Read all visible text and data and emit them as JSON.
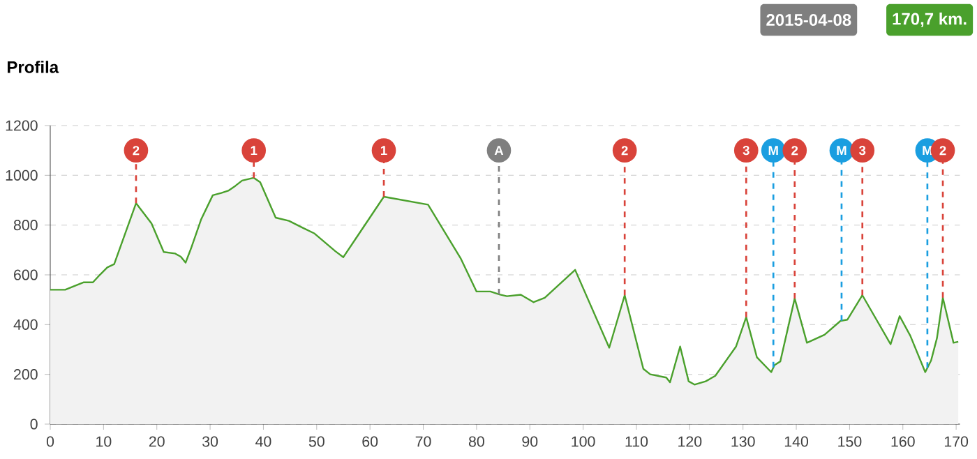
{
  "chart_data": {
    "type": "area",
    "title": "Profila",
    "annotations": [
      "2015-04-08",
      "170,7 km.",
      {
        "text": "2",
        "x": 16.1,
        "y": 1100
      },
      {
        "text": "1",
        "x": 38.2,
        "y": 1100
      },
      {
        "text": "1",
        "x": 62.6,
        "y": 1100
      },
      {
        "text": "A",
        "x": 84.2,
        "y": 1100
      },
      {
        "text": "2",
        "x": 107.8,
        "y": 1100
      },
      {
        "text": "3",
        "x": 130.6,
        "y": 1100
      },
      {
        "text": "M",
        "x": 135.7,
        "y": 1100
      },
      {
        "text": "2",
        "x": 139.7,
        "y": 1100
      },
      {
        "text": "M",
        "x": 148.5,
        "y": 1100
      },
      {
        "text": "3",
        "x": 152.4,
        "y": 1100
      },
      {
        "text": "M",
        "x": 164.6,
        "y": 1100
      },
      {
        "text": "2",
        "x": 167.5,
        "y": 1100
      }
    ],
    "x": [
      0,
      2.8,
      4.5,
      6.3,
      8,
      9.4,
      10.7,
      12,
      16.1,
      19,
      21.3,
      23.4,
      24.5,
      25.4,
      26.4,
      28.3,
      30.5,
      32.1,
      33.4,
      34.7,
      36,
      38.2,
      39.4,
      42.3,
      44.8,
      47.4,
      49.6,
      53.5,
      55,
      62.6,
      70.9,
      77,
      80,
      82.6,
      84.3,
      85.7,
      88.3,
      90.7,
      92.8,
      98.5,
      104.9,
      107.8,
      111.3,
      112.6,
      115.6,
      116.3,
      118.2,
      119.8,
      120.9,
      123,
      124.8,
      128.7,
      130.6,
      132.6,
      135.3,
      135.9,
      137,
      139.7,
      142,
      145.3,
      148.3,
      149.6,
      152.4,
      157.7,
      159.4,
      161.4,
      164.2,
      165.3,
      166.4,
      167.5,
      169.5,
      170.4
    ],
    "series": [
      {
        "color": "#4aa02c",
        "values": [
          540,
          540,
          555,
          570,
          570,
          602,
          630,
          643,
          888,
          807,
          692,
          686,
          673,
          649,
          705,
          822,
          920,
          929,
          938,
          957,
          979,
          990,
          972,
          830,
          817,
          789,
          766,
          695,
          671,
          914,
          882,
          667,
          533,
          533,
          521,
          514,
          520,
          490,
          508,
          620,
          307,
          518,
          222,
          200,
          187,
          168,
          312,
          172,
          159,
          172,
          194,
          312,
          430,
          269,
          209,
          237,
          252,
          505,
          327,
          359,
          415,
          420,
          518,
          321,
          434,
          355,
          209,
          256,
          346,
          508,
          327,
          331
        ]
      }
    ],
    "xlim": [
      0,
      170.7
    ],
    "ylim": [
      0,
      1200
    ],
    "xticks": [
      0,
      10,
      20,
      30,
      40,
      50,
      60,
      70,
      80,
      90,
      100,
      110,
      120,
      130,
      140,
      150,
      160,
      170
    ],
    "yticks": [
      0,
      200,
      400,
      600,
      800,
      1000,
      1200
    ],
    "grid": "y",
    "ref_lines": [
      {
        "axis": "x",
        "value": 16.1,
        "color": "#d9433a",
        "line_style": "dashed"
      },
      {
        "axis": "x",
        "value": 38.2,
        "color": "#d9433a",
        "line_style": "dashed"
      },
      {
        "axis": "x",
        "value": 62.6,
        "color": "#d9433a",
        "line_style": "dashed"
      },
      {
        "axis": "x",
        "value": 84.2,
        "color": "#7f7f7f",
        "line_style": "dashed"
      },
      {
        "axis": "x",
        "value": 107.8,
        "color": "#d9433a",
        "line_style": "dashed"
      },
      {
        "axis": "x",
        "value": 130.6,
        "color": "#d9433a",
        "line_style": "dashed"
      },
      {
        "axis": "x",
        "value": 135.7,
        "color": "#1a9ee0",
        "line_style": "dashed"
      },
      {
        "axis": "x",
        "value": 139.7,
        "color": "#d9433a",
        "line_style": "dashed"
      },
      {
        "axis": "x",
        "value": 148.5,
        "color": "#1a9ee0",
        "line_style": "dashed"
      },
      {
        "axis": "x",
        "value": 152.4,
        "color": "#d9433a",
        "line_style": "dashed"
      },
      {
        "axis": "x",
        "value": 164.6,
        "color": "#1a9ee0",
        "line_style": "dashed"
      },
      {
        "axis": "x",
        "value": 167.5,
        "color": "#d9433a",
        "line_style": "dashed"
      }
    ]
  }
}
